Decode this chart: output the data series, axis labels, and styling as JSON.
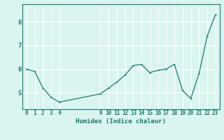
{
  "x": [
    0,
    1,
    2,
    3,
    4,
    9,
    10,
    11,
    12,
    13,
    14,
    15,
    16,
    17,
    18,
    19,
    20,
    21,
    22,
    23
  ],
  "y": [
    6.0,
    5.9,
    5.2,
    4.8,
    4.6,
    4.95,
    5.2,
    5.45,
    5.75,
    6.15,
    6.2,
    5.85,
    5.95,
    6.0,
    6.2,
    5.1,
    4.75,
    5.8,
    7.4,
    8.3
  ],
  "xlabel": "Humidex (Indice chaleur)",
  "line_color": "#1a7a6e",
  "marker": ".",
  "marker_size": 3,
  "bg_color": "#daf4f0",
  "grid_color": "#ffffff",
  "tick_color": "#1a7a6e",
  "label_color": "#1a7a6e",
  "xlim": [
    -0.5,
    23.5
  ],
  "ylim": [
    4.3,
    8.75
  ],
  "yticks": [
    5,
    6,
    7,
    8
  ],
  "xticks": [
    0,
    1,
    2,
    3,
    4,
    9,
    10,
    11,
    12,
    13,
    14,
    15,
    16,
    17,
    18,
    19,
    20,
    21,
    22,
    23
  ],
  "xlabel_fontsize": 6.5,
  "tick_fontsize": 5.5,
  "ytick_fontsize": 6.5
}
